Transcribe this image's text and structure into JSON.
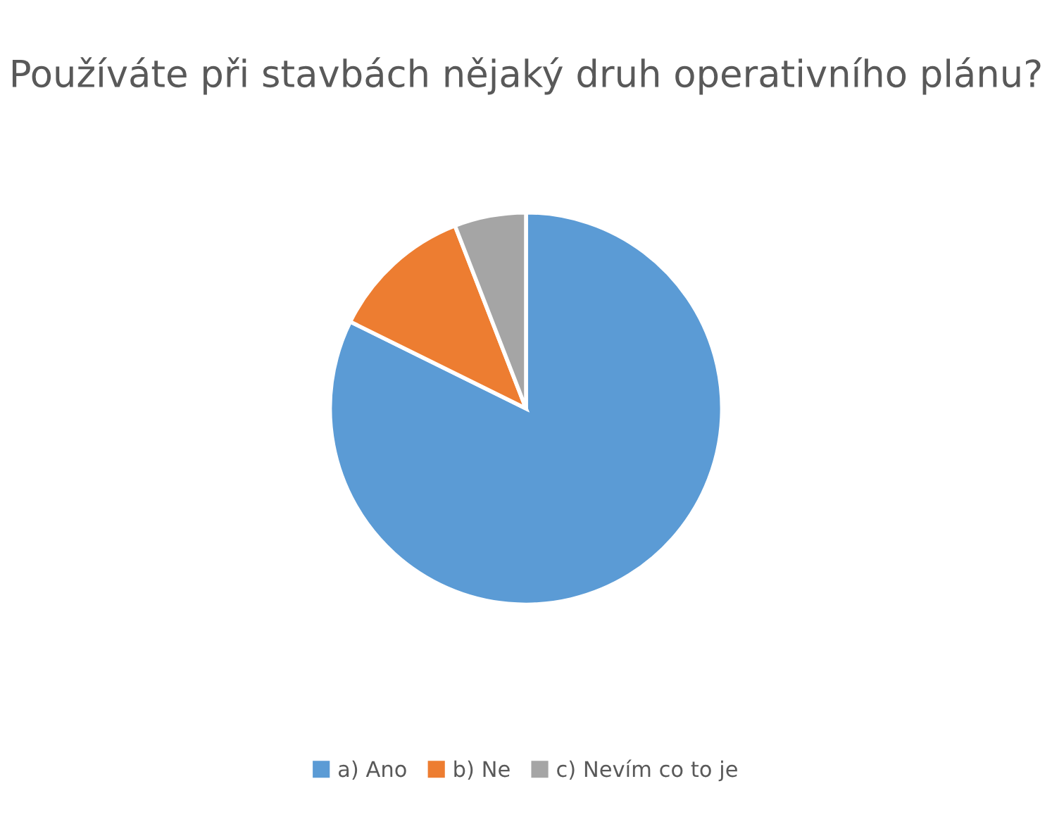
{
  "chart_data": {
    "type": "pie",
    "title": "Používáte při stavbách nějaký druh operativního plánu?",
    "categories": [
      "a) Ano",
      "b) Ne",
      "c) Nevím co to je"
    ],
    "values": [
      82.3,
      11.8,
      5.9
    ],
    "colors": [
      "#5b9bd5",
      "#ed7d31",
      "#a5a5a5"
    ],
    "legend": "bottom"
  }
}
